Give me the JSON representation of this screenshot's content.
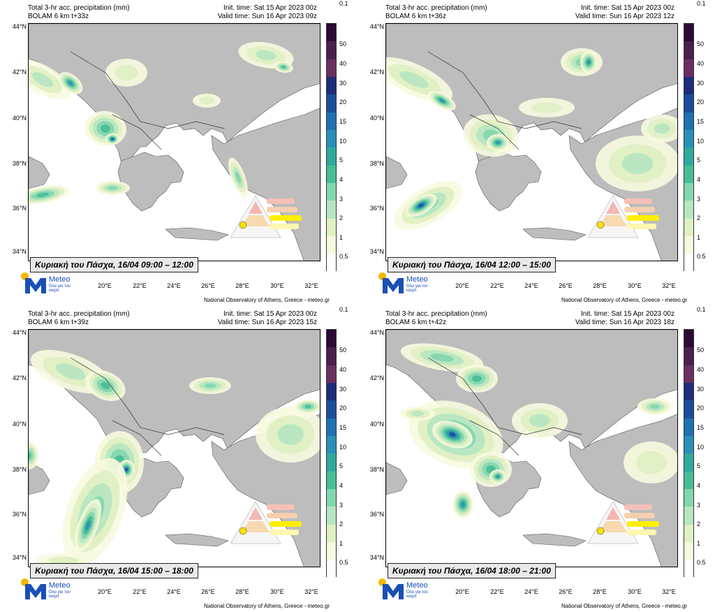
{
  "shared": {
    "header_title": "Total 3-hr acc. precipitation (mm)",
    "init_time": "Init. time: Sat 15 Apr 2023 00z",
    "credit": "National Observatory of Athens, Greece - meteo.gr",
    "logo_name": "Meteo",
    "logo_tagline": "Όλα για τον καιρό",
    "colorbar_labels": [
      "50",
      "40",
      "30",
      "20",
      "15",
      "10",
      "5",
      "4",
      "3",
      "2",
      "1",
      "0.5",
      "0.1"
    ],
    "colorbar_colors": [
      "#2b0b35",
      "#4b1f4f",
      "#6b2f62",
      "#1f2d7a",
      "#1c4d9b",
      "#1f72b0",
      "#2a90b8",
      "#2eaa9d",
      "#46bd96",
      "#82d6ae",
      "#b6e6c0",
      "#dff0c2",
      "#f7f9df",
      "#ffffff"
    ],
    "lat_labels": [
      "44°N",
      "42°N",
      "40°N",
      "38°N",
      "36°N",
      "34°N"
    ],
    "lon_labels": [
      "20°E",
      "22°E",
      "24°E",
      "26°E",
      "28°E",
      "30°E",
      "32°E"
    ],
    "land_color": "#bdbdbd"
  },
  "panels": [
    {
      "model": "BOLAM 6 km t+33z",
      "valid_time": "Valid time: Sun 16 Apr 2023 09z",
      "caption": "Κυριακή του Πάσχα, 16/04 09:00 – 12:00"
    },
    {
      "model": "BOLAM 6 km t+36z",
      "valid_time": "Valid time: Sun 16 Apr 2023 12z",
      "caption": "Κυριακή του Πάσχα, 16/04 12:00 – 15:00"
    },
    {
      "model": "BOLAM 6 km t+39z",
      "valid_time": "Valid time: Sun 16 Apr 2023 15z",
      "caption": "Κυριακή του Πάσχα, 16/04 15:00 – 18:00"
    },
    {
      "model": "BOLAM 6 km t+42z",
      "valid_time": "Valid time: Sun 16 Apr 2023 18z",
      "caption": "Κυριακή του Πάσχα, 16/04 18:00 – 21:00"
    }
  ]
}
